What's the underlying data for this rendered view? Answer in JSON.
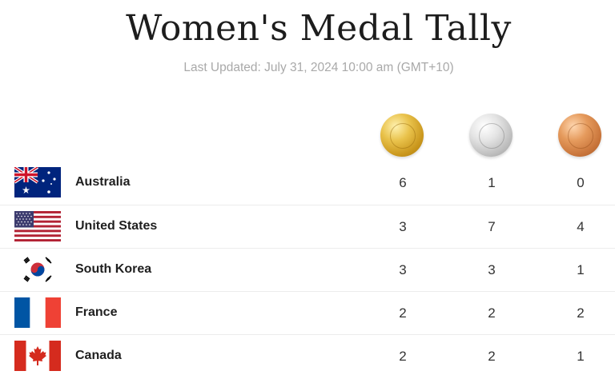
{
  "header": {
    "title": "Women's Medal Tally",
    "subtitle": "Last Updated: July 31, 2024 10:00 am (GMT+10)"
  },
  "medals": [
    "gold-medal-icon",
    "silver-medal-icon",
    "bronze-medal-icon"
  ],
  "rows": [
    {
      "country": "Australia",
      "flag": "australia-flag-icon",
      "gold": "6",
      "silver": "1",
      "bronze": "0"
    },
    {
      "country": "United States",
      "flag": "united-states-flag-icon",
      "gold": "3",
      "silver": "7",
      "bronze": "4"
    },
    {
      "country": "South Korea",
      "flag": "south-korea-flag-icon",
      "gold": "3",
      "silver": "3",
      "bronze": "1"
    },
    {
      "country": "France",
      "flag": "france-flag-icon",
      "gold": "2",
      "silver": "2",
      "bronze": "2"
    },
    {
      "country": "Canada",
      "flag": "canada-flag-icon",
      "gold": "2",
      "silver": "2",
      "bronze": "1"
    }
  ],
  "colors": {
    "gold": "#d9ab2e",
    "silver": "#c8c8c8",
    "bronze": "#d9834a",
    "title": "#1d1d1d",
    "subtitle": "#a9a9a9"
  }
}
